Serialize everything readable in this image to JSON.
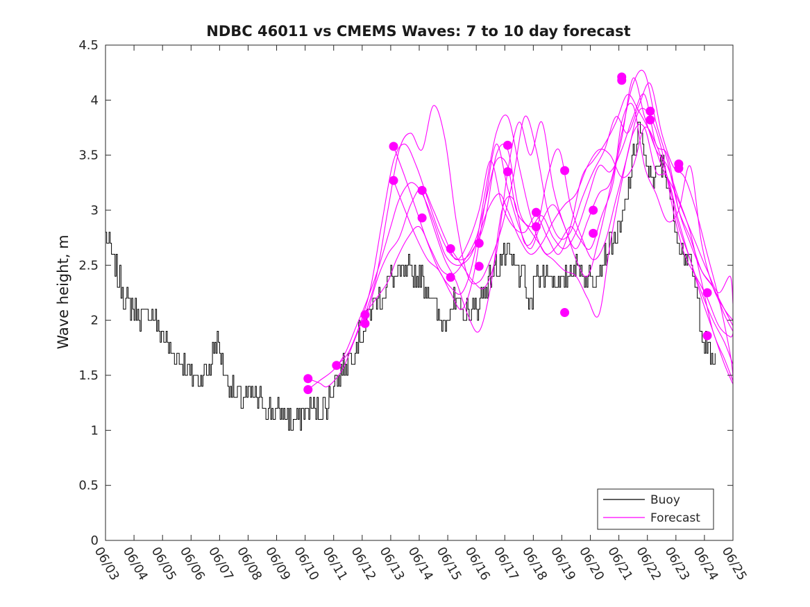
{
  "chart_data": {
    "type": "line",
    "title": "NDBC 46011 vs CMEMS Waves: 7 to 10 day forecast",
    "xlabel": "",
    "ylabel": "Wave height, m",
    "x_tick_labels": [
      "06/03",
      "06/04",
      "06/05",
      "06/06",
      "06/07",
      "06/08",
      "06/09",
      "06/10",
      "06/11",
      "06/12",
      "06/13",
      "06/14",
      "06/15",
      "06/16",
      "06/17",
      "06/18",
      "06/19",
      "06/20",
      "06/21",
      "06/22",
      "06/23",
      "06/24",
      "06/25"
    ],
    "y_ticks": [
      0,
      0.5,
      1,
      1.5,
      2,
      2.5,
      3,
      3.5,
      4,
      4.5
    ],
    "y_tick_labels": [
      "0",
      "0.5",
      "1",
      "1.5",
      "2",
      "2.5",
      "3",
      "3.5",
      "4",
      "4.5"
    ],
    "ylim": [
      0,
      4.5
    ],
    "xlim_days": [
      0,
      22
    ],
    "grid": false,
    "legend_position": "bottom-right",
    "colors": {
      "buoy": "#000000",
      "forecast": "#ff00ff"
    },
    "buoy": {
      "name": "Buoy",
      "anchor_points": [
        [
          0,
          2.8
        ],
        [
          0.3,
          2.5
        ],
        [
          0.7,
          2.2
        ],
        [
          1,
          2.1
        ],
        [
          1.3,
          2.0
        ],
        [
          1.6,
          2.1
        ],
        [
          2,
          1.85
        ],
        [
          2.3,
          1.7
        ],
        [
          2.6,
          1.65
        ],
        [
          3,
          1.5
        ],
        [
          3.3,
          1.5
        ],
        [
          3.6,
          1.55
        ],
        [
          3.9,
          1.8
        ],
        [
          4.1,
          1.6
        ],
        [
          4.4,
          1.35
        ],
        [
          4.7,
          1.3
        ],
        [
          5,
          1.3
        ],
        [
          5.3,
          1.3
        ],
        [
          5.6,
          1.2
        ],
        [
          6,
          1.15
        ],
        [
          6.3,
          1.15
        ],
        [
          6.6,
          1.05
        ],
        [
          6.9,
          1.15
        ],
        [
          7.2,
          1.2
        ],
        [
          7.5,
          1.15
        ],
        [
          7.8,
          1.25
        ],
        [
          8,
          1.45
        ],
        [
          8.3,
          1.55
        ],
        [
          8.6,
          1.7
        ],
        [
          9,
          1.9
        ],
        [
          9.3,
          2.1
        ],
        [
          9.6,
          2.2
        ],
        [
          10,
          2.4
        ],
        [
          10.3,
          2.4
        ],
        [
          10.6,
          2.45
        ],
        [
          11,
          2.4
        ],
        [
          11.3,
          2.3
        ],
        [
          11.6,
          2.1
        ],
        [
          11.8,
          1.95
        ],
        [
          12,
          2.1
        ],
        [
          12.3,
          2.15
        ],
        [
          12.6,
          2.05
        ],
        [
          13,
          2.1
        ],
        [
          13.3,
          2.3
        ],
        [
          13.6,
          2.45
        ],
        [
          14,
          2.6
        ],
        [
          14.3,
          2.5
        ],
        [
          14.6,
          2.4
        ],
        [
          14.9,
          2.1
        ],
        [
          15.1,
          2.5
        ],
        [
          15.3,
          2.4
        ],
        [
          15.6,
          2.45
        ],
        [
          16,
          2.3
        ],
        [
          16.3,
          2.45
        ],
        [
          16.6,
          2.5
        ],
        [
          17,
          2.35
        ],
        [
          17.3,
          2.5
        ],
        [
          17.6,
          2.65
        ],
        [
          18,
          2.8
        ],
        [
          18.2,
          3.0
        ],
        [
          18.5,
          3.5
        ],
        [
          18.7,
          3.8
        ],
        [
          18.9,
          3.4
        ],
        [
          19.2,
          3.3
        ],
        [
          19.5,
          3.4
        ],
        [
          19.7,
          3.3
        ],
        [
          20,
          2.8
        ],
        [
          20.3,
          2.6
        ],
        [
          20.6,
          2.4
        ],
        [
          20.8,
          2.1
        ],
        [
          21,
          1.8
        ],
        [
          21.2,
          1.65
        ],
        [
          21.4,
          1.6
        ]
      ],
      "amplitude_m": 0.12
    },
    "forecast_runs": [
      {
        "x": [
          7.1,
          7.5,
          7.8,
          8.3,
          8.7,
          9.1,
          9.5,
          9.9,
          10.2,
          10.6,
          11.0,
          11.4,
          11.8,
          12.2,
          12.6,
          13.0,
          13.3,
          13.7,
          14.1,
          14.4,
          14.8,
          15.2,
          15.5,
          15.9,
          16.3,
          16.6,
          17.0,
          17.4,
          17.8,
          18.1,
          18.5,
          18.9,
          19.3,
          19.7,
          20.1,
          20.5,
          20.9,
          21.3,
          21.7,
          22.0
        ],
        "y": [
          1.47,
          1.43,
          1.4,
          1.55,
          1.8,
          2.05,
          2.2,
          2.35,
          2.55,
          2.75,
          2.85,
          2.65,
          2.45,
          2.42,
          2.55,
          2.75,
          3.05,
          3.45,
          3.4,
          3.0,
          2.85,
          2.7,
          2.6,
          2.7,
          2.85,
          2.75,
          2.65,
          2.95,
          3.25,
          3.8,
          3.95,
          3.4,
          3.15,
          2.9,
          3.0,
          3.4,
          2.7,
          2.3,
          2.1,
          2.0
        ]
      },
      {
        "x": [
          7.1,
          7.5,
          8.0,
          8.4,
          8.8,
          9.2,
          9.6,
          10.0,
          10.3,
          10.7,
          11.1,
          11.5,
          11.9,
          12.3,
          12.7,
          13.0,
          13.4,
          13.8,
          14.1,
          14.5,
          14.9,
          15.3,
          15.7,
          16.1,
          16.5,
          16.9,
          17.3,
          17.7,
          18.1,
          18.5,
          18.9,
          19.3,
          19.7,
          20.1,
          20.5,
          20.9,
          21.3,
          21.7,
          22.0
        ],
        "y": [
          1.37,
          1.45,
          1.55,
          1.7,
          1.95,
          2.2,
          2.5,
          2.85,
          3.1,
          3.25,
          3.15,
          2.9,
          2.6,
          2.5,
          2.55,
          2.7,
          3.0,
          3.15,
          3.0,
          2.75,
          2.6,
          2.7,
          2.9,
          3.05,
          3.15,
          3.4,
          3.55,
          3.5,
          3.3,
          3.4,
          3.75,
          3.6,
          3.3,
          2.85,
          2.55,
          2.2,
          1.9,
          1.6,
          1.42
        ]
      },
      {
        "x": [
          8.1,
          8.5,
          8.9,
          9.3,
          9.7,
          10.1,
          10.5,
          10.9,
          11.3,
          11.7,
          12.1,
          12.5,
          12.9,
          13.3,
          13.7,
          14.1,
          14.5,
          14.9,
          15.3,
          15.7,
          16.1,
          16.5,
          16.9,
          17.3,
          17.7,
          18.1,
          18.5,
          18.9,
          19.3,
          19.7,
          20.1,
          20.5,
          20.9,
          21.3,
          21.7,
          22.0
        ],
        "y": [
          1.59,
          1.7,
          1.95,
          2.3,
          2.9,
          3.45,
          3.6,
          3.4,
          3.1,
          2.8,
          2.6,
          2.55,
          2.65,
          2.9,
          3.5,
          3.55,
          3.0,
          2.85,
          2.95,
          2.75,
          2.65,
          2.8,
          3.1,
          3.4,
          3.35,
          3.55,
          3.85,
          4.05,
          3.6,
          3.5,
          3.0,
          2.7,
          2.45,
          2.3,
          2.05,
          1.9
        ]
      },
      {
        "x": [
          9.1,
          9.5,
          9.9,
          10.3,
          10.7,
          11.1,
          11.5,
          11.9,
          12.3,
          12.7,
          13.1,
          13.5,
          13.9,
          14.3,
          14.7,
          15.1,
          15.5,
          15.9,
          16.3,
          16.7,
          17.1,
          17.5,
          17.9,
          18.3,
          18.7,
          19.1,
          19.5,
          19.9,
          20.3,
          20.7,
          21.1,
          21.5,
          21.9,
          22.0
        ],
        "y": [
          2.05,
          2.4,
          3.0,
          3.55,
          3.7,
          3.55,
          3.95,
          3.65,
          2.9,
          2.4,
          2.35,
          2.55,
          2.85,
          3.3,
          3.85,
          3.55,
          3.0,
          2.75,
          2.8,
          3.1,
          3.35,
          3.55,
          3.85,
          3.7,
          3.95,
          4.15,
          3.7,
          3.4,
          3.3,
          3.0,
          2.6,
          2.2,
          1.7,
          1.5
        ]
      },
      {
        "x": [
          9.1,
          9.5,
          9.9,
          10.3,
          10.7,
          11.1,
          11.5,
          11.9,
          12.3,
          12.7,
          13.1,
          13.5,
          13.9,
          14.3,
          14.7,
          15.1,
          15.5,
          15.9,
          16.3,
          16.7,
          17.1,
          17.5,
          17.9,
          18.3,
          18.7,
          19.1,
          19.5,
          19.9,
          20.3,
          20.7,
          21.1,
          21.5,
          21.9,
          22.0
        ],
        "y": [
          1.97,
          2.35,
          2.6,
          2.75,
          3.05,
          3.2,
          3.0,
          2.75,
          2.55,
          2.7,
          3.0,
          3.45,
          3.05,
          2.85,
          2.8,
          2.95,
          2.75,
          2.6,
          2.85,
          3.3,
          3.45,
          3.6,
          3.8,
          4.05,
          3.9,
          3.7,
          3.4,
          3.2,
          2.95,
          2.7,
          2.45,
          2.25,
          2.4,
          2.15
        ]
      },
      {
        "x": [
          10.1,
          10.5,
          10.9,
          11.3,
          11.7,
          12.1,
          12.5,
          12.9,
          13.3,
          13.7,
          14.1,
          14.5,
          14.9,
          15.3,
          15.7,
          16.1,
          16.5,
          16.9,
          17.3,
          17.7,
          18.1,
          18.5,
          18.9,
          19.3,
          19.7,
          20.1,
          20.5,
          20.9,
          21.3,
          21.7,
          22.0
        ],
        "y": [
          3.27,
          3.0,
          2.75,
          2.55,
          2.45,
          2.25,
          2.1,
          2.4,
          3.05,
          3.6,
          3.2,
          2.85,
          2.65,
          2.9,
          3.05,
          2.85,
          2.55,
          2.4,
          2.75,
          3.2,
          3.65,
          4.2,
          3.85,
          3.55,
          3.4,
          3.1,
          2.8,
          2.35,
          1.9,
          1.65,
          1.45
        ]
      },
      {
        "x": [
          10.1,
          10.5,
          10.9,
          11.3,
          11.7,
          12.1,
          12.5,
          12.9,
          13.3,
          13.7,
          14.1,
          14.5,
          14.9,
          15.3,
          15.7,
          16.1,
          16.5,
          16.9,
          17.3,
          17.7,
          18.1,
          18.5,
          18.9,
          19.3,
          19.7,
          20.1,
          20.5,
          20.9,
          21.3,
          21.7,
          22.0
        ],
        "y": [
          3.58,
          3.3,
          3.0,
          2.7,
          2.45,
          2.3,
          2.25,
          2.55,
          3.15,
          3.7,
          3.85,
          3.4,
          2.95,
          2.65,
          2.55,
          2.45,
          2.4,
          2.2,
          2.05,
          2.7,
          3.25,
          3.7,
          3.75,
          3.35,
          3.3,
          2.9,
          2.55,
          2.25,
          2.0,
          1.8,
          1.6
        ]
      },
      {
        "x": [
          11.1,
          11.5,
          11.9,
          12.3,
          12.7,
          13.1,
          13.5,
          13.9,
          14.3,
          14.7,
          15.1,
          15.5,
          15.9,
          16.3,
          16.7,
          17.1,
          17.5,
          17.9,
          18.3,
          18.7,
          19.1,
          19.5,
          19.9,
          20.3,
          20.7,
          21.1,
          21.5,
          21.9,
          22.0
        ],
        "y": [
          3.18,
          2.85,
          2.55,
          2.35,
          2.05,
          1.9,
          2.3,
          3.0,
          3.1,
          2.7,
          2.8,
          3.3,
          3.55,
          3.05,
          2.75,
          2.55,
          2.7,
          3.1,
          3.5,
          3.9,
          3.85,
          3.55,
          3.0,
          2.6,
          2.4,
          2.2,
          1.95,
          1.85,
          1.88
        ]
      },
      {
        "x": [
          12.1,
          12.5,
          12.9,
          13.3,
          13.7,
          14.1,
          14.5,
          14.9,
          15.3,
          15.7,
          16.1,
          16.5,
          16.9,
          17.3,
          17.7,
          18.1,
          18.5,
          18.9,
          19.3,
          19.7,
          20.1,
          20.5,
          20.9,
          21.3,
          21.7,
          22.0
        ],
        "y": [
          2.65,
          2.5,
          2.35,
          2.3,
          2.6,
          3.35,
          3.8,
          3.5,
          3.8,
          3.2,
          2.85,
          2.65,
          2.9,
          3.15,
          3.25,
          3.7,
          4.15,
          4.25,
          3.8,
          3.45,
          3.0,
          2.75,
          2.45,
          2.3,
          2.1,
          1.95
        ]
      }
    ],
    "forecast_markers": [
      [
        7.1,
        1.47
      ],
      [
        7.1,
        1.37
      ],
      [
        8.1,
        1.59
      ],
      [
        9.1,
        2.05
      ],
      [
        9.1,
        1.97
      ],
      [
        10.1,
        3.58
      ],
      [
        10.1,
        3.27
      ],
      [
        11.1,
        3.18
      ],
      [
        11.1,
        2.93
      ],
      [
        12.1,
        2.65
      ],
      [
        12.1,
        2.39
      ],
      [
        13.1,
        2.7
      ],
      [
        13.1,
        2.49
      ],
      [
        14.1,
        3.59
      ],
      [
        14.1,
        3.35
      ],
      [
        15.1,
        2.98
      ],
      [
        15.1,
        2.85
      ],
      [
        16.1,
        3.36
      ],
      [
        16.1,
        2.07
      ],
      [
        17.1,
        3.0
      ],
      [
        17.1,
        2.79
      ],
      [
        18.1,
        4.21
      ],
      [
        18.1,
        4.18
      ],
      [
        19.1,
        3.9
      ],
      [
        19.1,
        3.82
      ],
      [
        20.1,
        3.42
      ],
      [
        20.1,
        3.38
      ],
      [
        21.1,
        2.25
      ],
      [
        21.1,
        1.86
      ]
    ],
    "legend": [
      {
        "label": "Buoy",
        "color": "#000000"
      },
      {
        "label": "Forecast",
        "color": "#ff00ff"
      }
    ]
  }
}
